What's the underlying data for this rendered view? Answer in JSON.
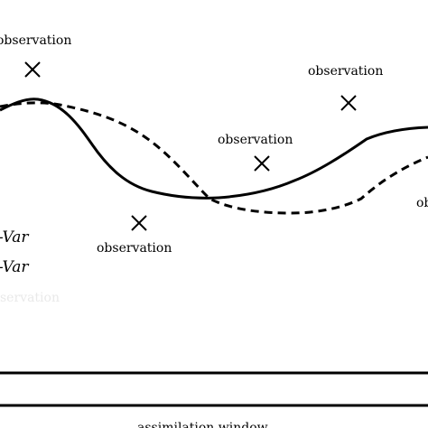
{
  "labels": {
    "obs_top_left": "observation",
    "obs_lower_left": "observation",
    "obs_middle": "observation",
    "obs_right": "observation",
    "obs_far_right": "ob",
    "legend_1": "-Var",
    "legend_2": "-Var",
    "faded": "servation",
    "axis_label": "assimilation window"
  },
  "colors": {
    "ink": "#000000",
    "background": "#ffffff"
  }
}
